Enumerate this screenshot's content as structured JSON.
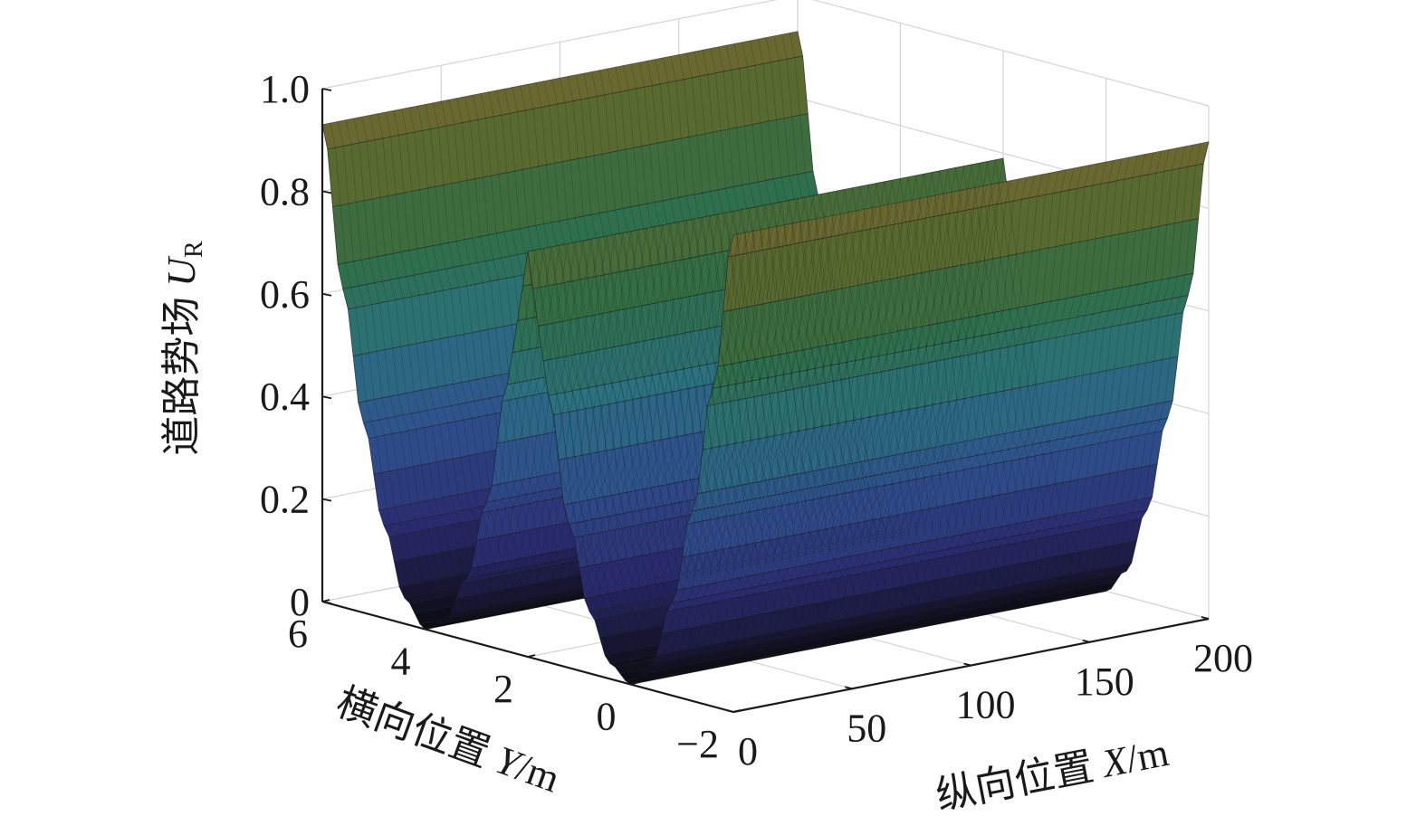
{
  "chart_data": {
    "type": "surface",
    "zlabel": "道路势场 U_R",
    "zlabel_text": "道路势场 ",
    "zlabel_symbol": "U",
    "zlabel_subscript": "R",
    "xlabel": "纵向位置 X/m",
    "xlabel_text": "纵向位置 ",
    "xlabel_symbol": "X",
    "xlabel_unit": "/m",
    "ylabel": "横向位置 Y/m",
    "ylabel_text": "横向位置 ",
    "ylabel_symbol": "Y",
    "ylabel_unit": "/m",
    "xlim": [
      0,
      200
    ],
    "ylim": [
      -2,
      6
    ],
    "zlim": [
      0,
      1
    ],
    "xticks": [
      0,
      50,
      100,
      150,
      200
    ],
    "xtick_labels": [
      "0",
      "50",
      "100",
      "150",
      "200"
    ],
    "yticks": [
      -2,
      0,
      2,
      4,
      6
    ],
    "ytick_labels": [
      "−2",
      "0",
      "2",
      "4",
      "6"
    ],
    "zticks": [
      0,
      0.2,
      0.4,
      0.6,
      0.8,
      1.0
    ],
    "ztick_labels": [
      "0",
      "0.2",
      "0.4",
      "0.6",
      "0.8",
      "1.0"
    ],
    "surface": {
      "description_of_values": "Road potential as a function of lateral position Y, constant along X",
      "y_profile": [
        {
          "y": -2.0,
          "z": 0.93
        },
        {
          "y": -1.6,
          "z": 0.62
        },
        {
          "y": -1.2,
          "z": 0.37
        },
        {
          "y": -0.8,
          "z": 0.18
        },
        {
          "y": -0.4,
          "z": 0.05
        },
        {
          "y": 0.0,
          "z": 0.0
        },
        {
          "y": 0.4,
          "z": 0.03
        },
        {
          "y": 0.8,
          "z": 0.12
        },
        {
          "y": 1.2,
          "z": 0.28
        },
        {
          "y": 1.6,
          "z": 0.52
        },
        {
          "y": 1.8,
          "z": 0.65
        },
        {
          "y": 2.0,
          "z": 0.79
        },
        {
          "y": 2.2,
          "z": 0.65
        },
        {
          "y": 2.4,
          "z": 0.52
        },
        {
          "y": 2.8,
          "z": 0.28
        },
        {
          "y": 3.2,
          "z": 0.12
        },
        {
          "y": 3.6,
          "z": 0.03
        },
        {
          "y": 4.0,
          "z": 0.0
        },
        {
          "y": 4.4,
          "z": 0.05
        },
        {
          "y": 4.8,
          "z": 0.18
        },
        {
          "y": 5.2,
          "z": 0.37
        },
        {
          "y": 5.6,
          "z": 0.62
        },
        {
          "y": 6.0,
          "z": 0.93
        }
      ]
    },
    "grid": true,
    "colormap_colors": [
      "#0b0b12",
      "#2a2a6e",
      "#2f4f8e",
      "#2b7180",
      "#2f6f45",
      "#5a6a30",
      "#7a6530"
    ]
  }
}
